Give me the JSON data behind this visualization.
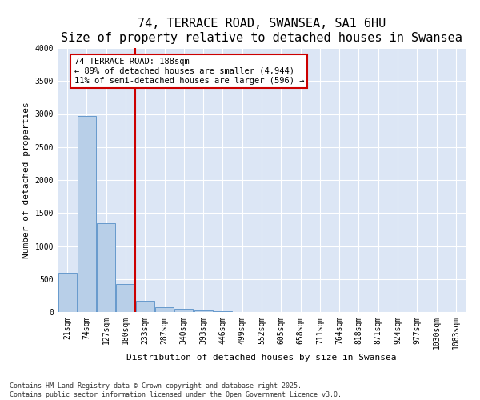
{
  "title": "74, TERRACE ROAD, SWANSEA, SA1 6HU",
  "subtitle": "Size of property relative to detached houses in Swansea",
  "xlabel": "Distribution of detached houses by size in Swansea",
  "ylabel": "Number of detached properties",
  "bar_labels": [
    "21sqm",
    "74sqm",
    "127sqm",
    "180sqm",
    "233sqm",
    "287sqm",
    "340sqm",
    "393sqm",
    "446sqm",
    "499sqm",
    "552sqm",
    "605sqm",
    "658sqm",
    "711sqm",
    "764sqm",
    "818sqm",
    "871sqm",
    "924sqm",
    "977sqm",
    "1030sqm",
    "1083sqm"
  ],
  "bar_values": [
    590,
    2970,
    1340,
    430,
    165,
    75,
    50,
    30,
    10,
    5,
    2,
    1,
    1,
    0,
    0,
    0,
    0,
    0,
    0,
    0,
    0
  ],
  "bar_color": "#b8cfe8",
  "bar_edgecolor": "#6699cc",
  "vline_x": 3.5,
  "vline_color": "#cc0000",
  "annotation_text": "74 TERRACE ROAD: 188sqm\n← 89% of detached houses are smaller (4,944)\n11% of semi-detached houses are larger (596) →",
  "annotation_box_edgecolor": "#cc0000",
  "ylim": [
    0,
    4000
  ],
  "yticks": [
    0,
    500,
    1000,
    1500,
    2000,
    2500,
    3000,
    3500,
    4000
  ],
  "background_color": "#dce6f5",
  "footer_text": "Contains HM Land Registry data © Crown copyright and database right 2025.\nContains public sector information licensed under the Open Government Licence v3.0.",
  "title_fontsize": 11,
  "subtitle_fontsize": 9,
  "axis_label_fontsize": 8,
  "tick_fontsize": 7,
  "annotation_fontsize": 7.5,
  "footer_fontsize": 6
}
